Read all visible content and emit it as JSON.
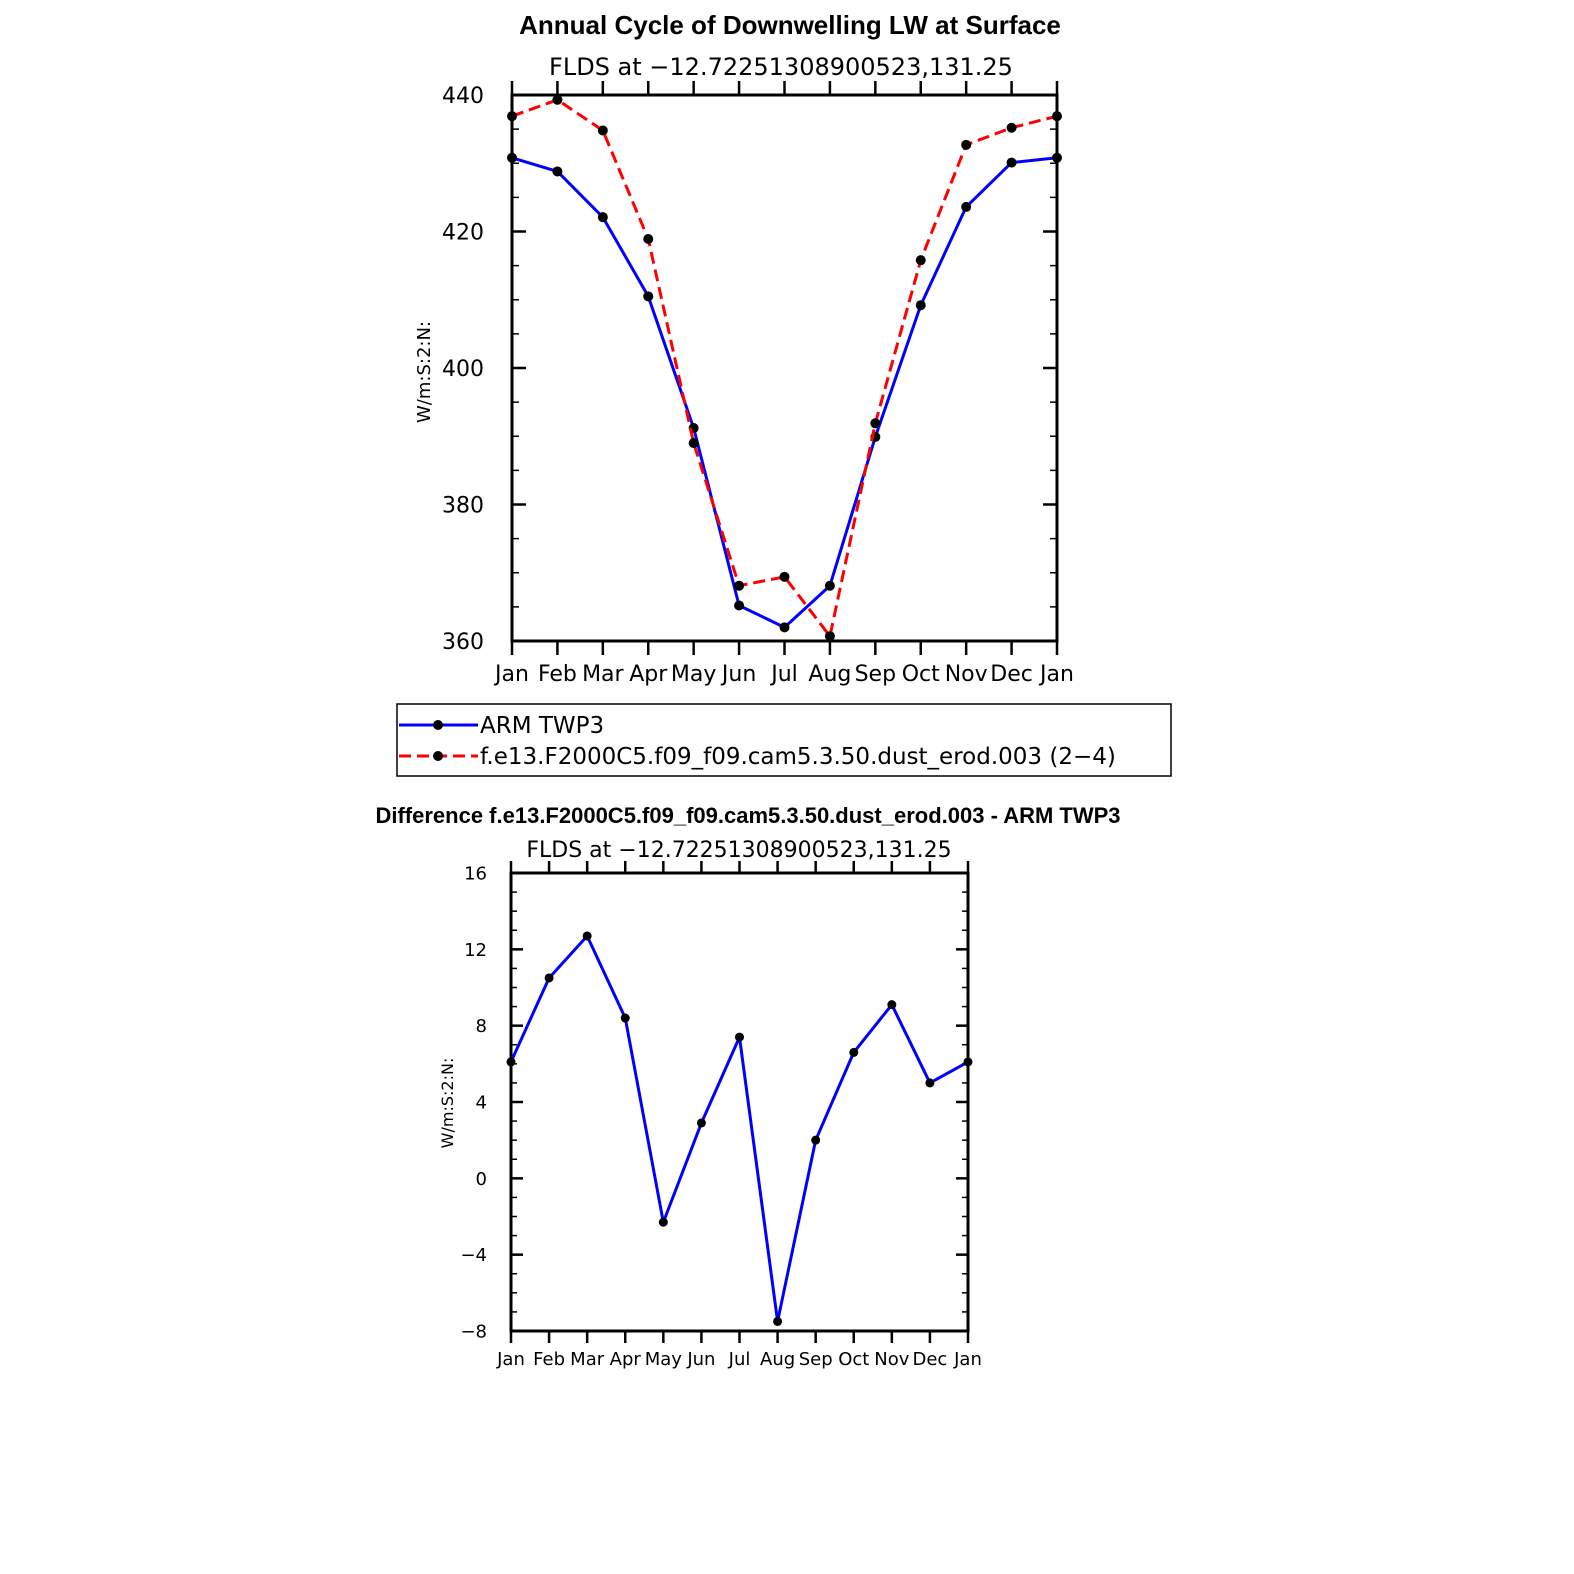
{
  "chart_data": [
    {
      "type": "line",
      "title": "Annual Cycle of Downwelling LW at Surface",
      "subtitle": "FLDS at −12.72251308900523,131.25",
      "xlabel": "",
      "ylabel": "W/m:S:2:N:",
      "categories": [
        "Jan",
        "Feb",
        "Mar",
        "Apr",
        "May",
        "Jun",
        "Jul",
        "Aug",
        "Sep",
        "Oct",
        "Nov",
        "Dec",
        "Jan"
      ],
      "ylim": [
        360,
        440
      ],
      "yticks": [
        "360",
        "380",
        "400",
        "420",
        "440"
      ],
      "grid": false,
      "legend": "below",
      "series": [
        {
          "name": "ARM TWP3",
          "color": "#0000ff",
          "dash": "solid",
          "values": [
            430.8,
            428.8,
            422.1,
            410.5,
            391.2,
            365.2,
            362.0,
            368.1,
            389.9,
            409.2,
            423.6,
            430.1,
            430.8
          ]
        },
        {
          "name": "f.e13.F2000C5.f09_f09.cam5.3.50.dust_erod.003 (2−4)",
          "color": "#ff0000",
          "dash": "dashed",
          "values": [
            436.9,
            439.3,
            434.8,
            418.9,
            389.0,
            368.1,
            369.4,
            360.7,
            391.9,
            415.8,
            432.7,
            435.2,
            436.9
          ]
        }
      ]
    },
    {
      "type": "line",
      "title": "Difference f.e13.F2000C5.f09_f09.cam5.3.50.dust_erod.003 - ARM TWP3",
      "subtitle": "FLDS at −12.72251308900523,131.25",
      "xlabel": "",
      "ylabel": "W/m:S:2:N:",
      "categories": [
        "Jan",
        "Feb",
        "Mar",
        "Apr",
        "May",
        "Jun",
        "Jul",
        "Aug",
        "Sep",
        "Oct",
        "Nov",
        "Dec",
        "Jan"
      ],
      "ylim": [
        -8,
        16
      ],
      "yticks": [
        "−8",
        "−4",
        "0",
        "4",
        "8",
        "12",
        "16"
      ],
      "grid": false,
      "legend": "none",
      "series": [
        {
          "color": "#0000ff",
          "dash": "solid",
          "values": [
            6.1,
            10.5,
            12.7,
            8.4,
            -2.3,
            2.9,
            7.4,
            -7.5,
            2.0,
            6.6,
            9.1,
            5.0,
            6.1
          ]
        }
      ]
    }
  ]
}
